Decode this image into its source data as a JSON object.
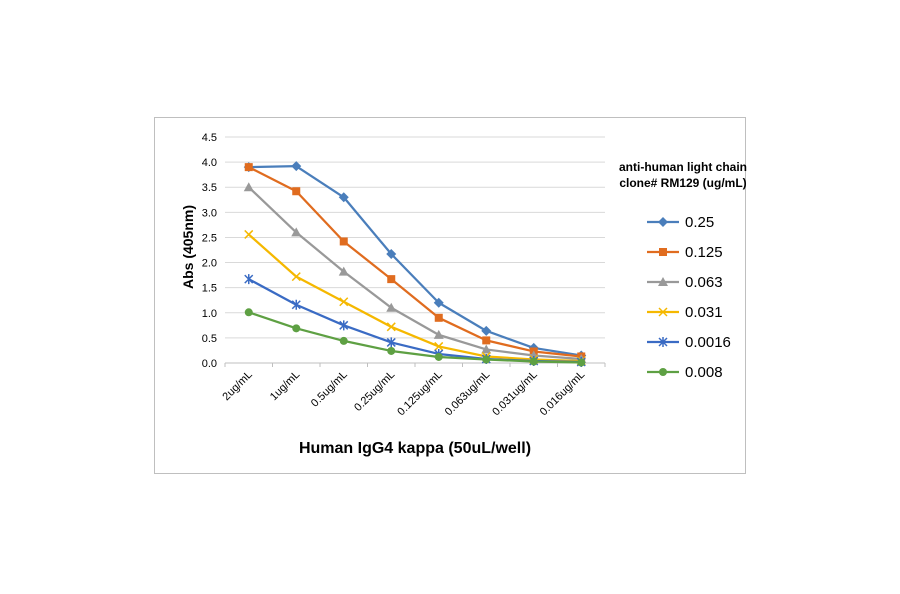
{
  "chart_data": {
    "type": "line",
    "xlabel": "Human IgG4 kappa (50uL/well)",
    "ylabel": "Abs (405nm)",
    "legend_title": [
      "anti-human light chain",
      "clone# RM129 (ug/mL)"
    ],
    "legend_position": "right",
    "grid": true,
    "categories": [
      "2ug/mL",
      "1ug/mL",
      "0.5ug/mL",
      "0.25ug/mL",
      "0.125ug/mL",
      "0.063ug/mL",
      "0.031ug/mL",
      "0.016ug/mL"
    ],
    "yticks": [
      "0.0",
      "0.5",
      "1.0",
      "1.5",
      "2.0",
      "2.5",
      "3.0",
      "3.5",
      "4.0",
      "4.5"
    ],
    "ylim": [
      0,
      4.5
    ],
    "series": [
      {
        "name": "0.25",
        "color": "#4a7ebb",
        "marker": "diamond",
        "values": [
          3.9,
          3.92,
          3.3,
          2.17,
          1.2,
          0.64,
          0.3,
          0.15
        ]
      },
      {
        "name": "0.125",
        "color": "#e06c1f",
        "marker": "square",
        "values": [
          3.9,
          3.42,
          2.42,
          1.67,
          0.9,
          0.45,
          0.23,
          0.13
        ]
      },
      {
        "name": "0.063",
        "color": "#999999",
        "marker": "triangle",
        "values": [
          3.5,
          2.6,
          1.82,
          1.1,
          0.56,
          0.27,
          0.15,
          0.08
        ]
      },
      {
        "name": "0.031",
        "color": "#f5b800",
        "marker": "x",
        "values": [
          2.56,
          1.72,
          1.22,
          0.72,
          0.33,
          0.13,
          0.07,
          0.04
        ]
      },
      {
        "name": "0.0016",
        "color": "#3a6bc4",
        "marker": "star",
        "values": [
          1.67,
          1.16,
          0.75,
          0.41,
          0.18,
          0.08,
          0.04,
          0.02
        ]
      },
      {
        "name": "0.008",
        "color": "#5ea043",
        "marker": "circle",
        "values": [
          1.01,
          0.69,
          0.44,
          0.24,
          0.12,
          0.07,
          0.03,
          0.01
        ]
      }
    ]
  }
}
